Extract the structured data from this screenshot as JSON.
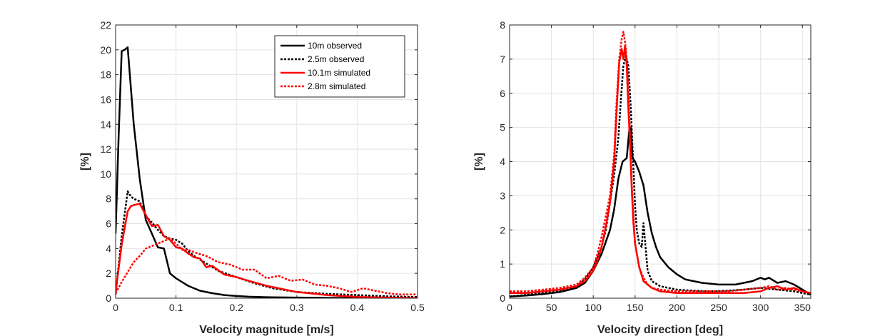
{
  "chart_data": [
    {
      "type": "line",
      "xlabel": "Velocity magnitude [m/s]",
      "ylabel": "[%]",
      "xlim": [
        0,
        0.5
      ],
      "ylim": [
        0,
        22
      ],
      "xticks": [
        0,
        0.1,
        0.2,
        0.3,
        0.4,
        0.5
      ],
      "xtick_labels": [
        "0",
        "0.1",
        "0.2",
        "0.3",
        "0.4",
        "0.5"
      ],
      "yticks": [
        0,
        2,
        4,
        6,
        8,
        10,
        12,
        14,
        16,
        18,
        20,
        22
      ],
      "ytick_labels": [
        "0",
        "2",
        "4",
        "6",
        "8",
        "10",
        "12",
        "14",
        "16",
        "18",
        "20",
        "22"
      ],
      "grid": true,
      "legend_position": "top-right",
      "series": [
        {
          "name": "10m observed",
          "color": "#000000",
          "dash": "solid",
          "x": [
            0,
            0.005,
            0.01,
            0.015,
            0.02,
            0.03,
            0.04,
            0.05,
            0.06,
            0.07,
            0.08,
            0.09,
            0.1,
            0.12,
            0.14,
            0.16,
            0.18,
            0.2,
            0.22,
            0.25,
            0.3,
            0.35,
            0.4,
            0.45,
            0.5
          ],
          "y": [
            5.2,
            13.0,
            19.9,
            20.0,
            20.2,
            14.0,
            9.6,
            6.3,
            5.2,
            4.1,
            4.0,
            2.0,
            1.6,
            1.0,
            0.6,
            0.4,
            0.25,
            0.18,
            0.12,
            0.08,
            0.05,
            0.03,
            0.02,
            0.01,
            0.0
          ]
        },
        {
          "name": "2.5m observed",
          "color": "#000000",
          "dash": "dotted",
          "x": [
            0,
            0.01,
            0.02,
            0.025,
            0.03,
            0.04,
            0.05,
            0.06,
            0.07,
            0.08,
            0.09,
            0.1,
            0.11,
            0.12,
            0.13,
            0.15,
            0.17,
            0.2,
            0.23,
            0.26,
            0.3,
            0.35,
            0.4,
            0.45,
            0.5
          ],
          "y": [
            0.3,
            5.0,
            8.6,
            8.2,
            8.0,
            7.8,
            6.6,
            6.1,
            5.5,
            5.0,
            4.8,
            4.7,
            4.4,
            3.8,
            3.4,
            2.8,
            2.2,
            1.7,
            1.2,
            0.8,
            0.5,
            0.35,
            0.25,
            0.15,
            0.1
          ]
        },
        {
          "name": "10.1m simulated",
          "color": "#ff0000",
          "dash": "solid",
          "x": [
            0,
            0.01,
            0.02,
            0.025,
            0.03,
            0.04,
            0.05,
            0.06,
            0.07,
            0.08,
            0.09,
            0.1,
            0.11,
            0.12,
            0.13,
            0.14,
            0.15,
            0.16,
            0.18,
            0.2,
            0.22,
            0.25,
            0.28,
            0.3,
            0.35,
            0.4,
            0.45,
            0.5
          ],
          "y": [
            0.5,
            4.3,
            7.0,
            7.4,
            7.5,
            7.6,
            6.7,
            5.8,
            5.9,
            5.0,
            4.7,
            4.1,
            4.0,
            3.6,
            3.3,
            3.2,
            2.5,
            2.6,
            1.9,
            1.7,
            1.4,
            1.0,
            0.7,
            0.5,
            0.25,
            0.1,
            0.05,
            0.02
          ]
        },
        {
          "name": "2.8m simulated",
          "color": "#ff0000",
          "dash": "dotted",
          "x": [
            0,
            0.01,
            0.02,
            0.03,
            0.04,
            0.05,
            0.06,
            0.07,
            0.08,
            0.09,
            0.1,
            0.11,
            0.12,
            0.13,
            0.15,
            0.17,
            0.19,
            0.21,
            0.23,
            0.25,
            0.27,
            0.29,
            0.31,
            0.33,
            0.35,
            0.37,
            0.39,
            0.41,
            0.43,
            0.45,
            0.47,
            0.5
          ],
          "y": [
            0.4,
            1.3,
            2.1,
            2.9,
            3.4,
            4.0,
            4.2,
            4.4,
            4.6,
            4.8,
            4.4,
            3.9,
            3.9,
            3.7,
            3.4,
            2.9,
            2.7,
            2.3,
            2.3,
            1.6,
            1.8,
            1.4,
            1.5,
            1.1,
            1.0,
            0.8,
            0.5,
            0.8,
            0.6,
            0.4,
            0.3,
            0.3
          ]
        }
      ]
    },
    {
      "type": "line",
      "xlabel": "Velocity direction [deg]",
      "ylabel": "[%]",
      "xlim": [
        0,
        360
      ],
      "ylim": [
        0,
        8
      ],
      "xticks": [
        0,
        50,
        100,
        150,
        200,
        250,
        300,
        350
      ],
      "xtick_labels": [
        "0",
        "50",
        "100",
        "150",
        "200",
        "250",
        "300",
        "350"
      ],
      "yticks": [
        0,
        1,
        2,
        3,
        4,
        5,
        6,
        7,
        8
      ],
      "ytick_labels": [
        "0",
        "1",
        "2",
        "3",
        "4",
        "5",
        "6",
        "7",
        "8"
      ],
      "grid": true,
      "series": [
        {
          "color": "#000000",
          "dash": "solid",
          "x": [
            0,
            20,
            40,
            60,
            80,
            90,
            100,
            110,
            120,
            125,
            130,
            135,
            140,
            143,
            145,
            147,
            150,
            155,
            160,
            165,
            170,
            175,
            180,
            190,
            200,
            210,
            220,
            230,
            250,
            270,
            290,
            300,
            305,
            310,
            320,
            330,
            340,
            350,
            360
          ],
          "y": [
            0.05,
            0.08,
            0.12,
            0.18,
            0.3,
            0.45,
            0.8,
            1.3,
            2.0,
            2.6,
            3.5,
            4.0,
            4.1,
            4.9,
            5.0,
            4.1,
            4.0,
            3.7,
            3.3,
            2.5,
            1.9,
            1.5,
            1.2,
            0.9,
            0.7,
            0.55,
            0.5,
            0.45,
            0.4,
            0.4,
            0.5,
            0.6,
            0.55,
            0.6,
            0.45,
            0.5,
            0.4,
            0.25,
            0.1
          ]
        },
        {
          "color": "#000000",
          "dash": "dotted",
          "x": [
            0,
            20,
            40,
            60,
            80,
            90,
            100,
            110,
            115,
            120,
            125,
            130,
            133,
            136,
            139,
            142,
            145,
            148,
            150,
            152,
            155,
            158,
            160,
            165,
            170,
            180,
            190,
            200,
            220,
            240,
            260,
            280,
            300,
            320,
            340,
            360
          ],
          "y": [
            0.05,
            0.1,
            0.15,
            0.2,
            0.35,
            0.55,
            0.9,
            1.5,
            2.0,
            2.8,
            3.6,
            4.7,
            5.8,
            6.8,
            7.1,
            6.8,
            5.5,
            3.8,
            2.7,
            2.0,
            1.6,
            1.5,
            2.2,
            0.8,
            0.5,
            0.35,
            0.3,
            0.25,
            0.22,
            0.2,
            0.22,
            0.25,
            0.3,
            0.25,
            0.2,
            0.1
          ]
        },
        {
          "color": "#ff0000",
          "dash": "solid",
          "x": [
            0,
            20,
            40,
            60,
            80,
            90,
            100,
            105,
            110,
            115,
            120,
            125,
            128,
            131,
            134,
            136,
            138,
            140,
            142,
            144,
            146,
            148,
            150,
            155,
            160,
            165,
            170,
            180,
            200,
            220,
            240,
            260,
            280,
            300,
            310,
            320,
            330,
            340,
            350,
            360
          ],
          "y": [
            0.15,
            0.15,
            0.2,
            0.25,
            0.35,
            0.5,
            0.8,
            1.1,
            1.5,
            2.1,
            2.8,
            4.0,
            5.5,
            6.9,
            7.3,
            7.0,
            7.4,
            6.8,
            5.5,
            4.5,
            3.2,
            2.2,
            1.6,
            0.9,
            0.5,
            0.4,
            0.3,
            0.2,
            0.15,
            0.15,
            0.15,
            0.15,
            0.15,
            0.2,
            0.3,
            0.35,
            0.25,
            0.3,
            0.2,
            0.15
          ]
        },
        {
          "color": "#ff0000",
          "dash": "dotted",
          "x": [
            0,
            20,
            40,
            60,
            80,
            90,
            100,
            105,
            110,
            115,
            120,
            125,
            128,
            131,
            134,
            136,
            138,
            140,
            142,
            144,
            146,
            148,
            150,
            155,
            160,
            165,
            170,
            180,
            200,
            220,
            240,
            260,
            280,
            300,
            310,
            320,
            330,
            340,
            350,
            360
          ],
          "y": [
            0.2,
            0.2,
            0.25,
            0.3,
            0.4,
            0.6,
            0.9,
            1.3,
            1.8,
            2.4,
            3.0,
            4.2,
            5.8,
            7.0,
            7.6,
            7.8,
            7.5,
            7.0,
            6.0,
            4.8,
            3.4,
            2.4,
            1.6,
            0.9,
            0.6,
            0.4,
            0.3,
            0.25,
            0.2,
            0.2,
            0.2,
            0.2,
            0.25,
            0.3,
            0.35,
            0.25,
            0.3,
            0.25,
            0.2,
            0.15
          ]
        }
      ]
    }
  ]
}
